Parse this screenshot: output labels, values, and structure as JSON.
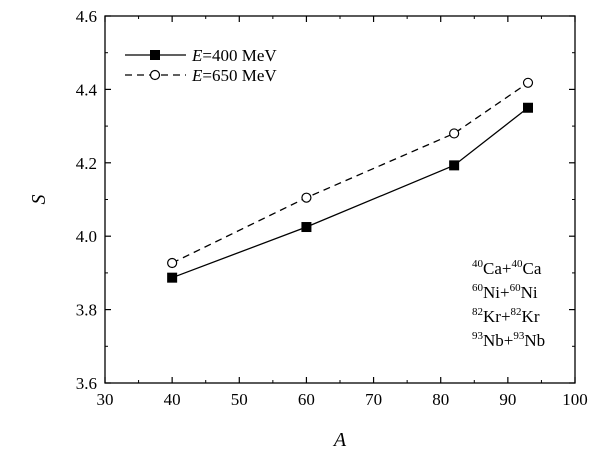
{
  "chart_data": {
    "type": "line",
    "xlabel": "A",
    "ylabel": "S",
    "xlim": [
      30,
      100
    ],
    "ylim": [
      3.6,
      4.6
    ],
    "x_ticks": [
      30,
      40,
      50,
      60,
      70,
      80,
      90,
      100
    ],
    "x_tick_labels": [
      "30",
      "40",
      "50",
      "60",
      "70",
      "80",
      "90",
      "100"
    ],
    "y_ticks": [
      3.6,
      3.8,
      4.0,
      4.2,
      4.4,
      4.6
    ],
    "y_tick_labels": [
      "3.6",
      "3.8",
      "4.0",
      "4.2",
      "4.4",
      "4.6"
    ],
    "grid": false,
    "legend_position": "top-left",
    "series": [
      {
        "name": "E=400 MeV",
        "name_parts": {
          "var": "E",
          "rest": "=400 MeV"
        },
        "marker": "filled-square",
        "line_style": "solid",
        "x": [
          40,
          60,
          82,
          93
        ],
        "y": [
          3.887,
          4.025,
          4.193,
          4.35
        ]
      },
      {
        "name": "E=650 MeV",
        "name_parts": {
          "var": "E",
          "rest": "=650 MeV"
        },
        "marker": "open-circle",
        "line_style": "dashed",
        "x": [
          40,
          60,
          82,
          93
        ],
        "y": [
          3.927,
          4.105,
          4.28,
          4.418
        ]
      }
    ],
    "annotations": [
      {
        "a1": "40",
        "e1": "Ca",
        "a2": "40",
        "e2": "Ca"
      },
      {
        "a1": "60",
        "e1": "Ni",
        "a2": "60",
        "e2": "Ni"
      },
      {
        "a1": "82",
        "e1": "Kr",
        "a2": "82",
        "e2": "Kr"
      },
      {
        "a1": "93",
        "e1": "Nb",
        "a2": "93",
        "e2": "Nb"
      }
    ],
    "colors": {
      "line": "#000000",
      "background": "#ffffff"
    }
  }
}
